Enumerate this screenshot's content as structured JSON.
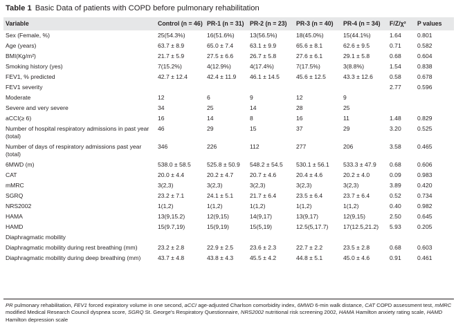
{
  "caption": {
    "label": "Table 1",
    "text": "Basic Data of patients with COPD before pulmonary rehabilitation"
  },
  "columns": [
    "Variable",
    "Control (n = 46)",
    "PR-1 (n = 31)",
    "PR-2 (n = 23)",
    "PR-3 (n = 40)",
    "PR-4 (n = 34)",
    "F/Z/χ²",
    "P values"
  ],
  "rows": [
    [
      "Sex (Female, %)",
      "25(54.3%)",
      "16(51.6%)",
      "13(56.5%)",
      "18(45.0%)",
      "15(44.1%)",
      "1.64",
      "0.801"
    ],
    [
      "Age (years)",
      "63.7 ± 8.9",
      "65.0 ± 7.4",
      "63.1 ± 9.9",
      "65.6 ± 8.1",
      "62.6 ± 9.5",
      "0.71",
      "0.582"
    ],
    [
      "BMI(Kg/m²)",
      "21.7 ± 5.9",
      "27.5 ± 6.6",
      "26.7 ± 5.8",
      "27.6 ± 6.1",
      "29.1 ± 5.8",
      "0.68",
      "0.604"
    ],
    [
      "Smoking history (yes)",
      "7(15.2%)",
      "4(12.9%)",
      "4(17.4%)",
      "7(17.5%)",
      "3(8.8%)",
      "1.54",
      "0.838"
    ],
    [
      "FEV1, % predicted",
      "42.7 ± 12.4",
      "42.4 ± 11.9",
      "46.1 ± 14.5",
      "45.6 ± 12.5",
      "43.3 ± 12.6",
      "0.58",
      "0.678"
    ],
    [
      "FEV1 severity",
      "",
      "",
      "",
      "",
      "",
      "2.77",
      "0.596"
    ],
    [
      "Moderate",
      "12",
      "6",
      "9",
      "12",
      "9",
      "",
      ""
    ],
    [
      "Severe and very severe",
      "34",
      "25",
      "14",
      "28",
      "25",
      "",
      ""
    ],
    [
      "aCCI(≥ 6)",
      "16",
      "14",
      "8",
      "16",
      "11",
      "1.48",
      "0.829"
    ],
    [
      "Number of hospital respiratory admissions in past year (total)",
      "46",
      "29",
      "15",
      "37",
      "29",
      "3.20",
      "0.525"
    ],
    [
      "Number of days of respiratory admissions past year (total)",
      "346",
      "226",
      "112",
      "277",
      "206",
      "3.58",
      "0.465"
    ],
    [
      "6MWD (m)",
      "538.0 ± 58.5",
      "525.8 ± 50.9",
      "548.2 ± 54.5",
      "530.1 ± 56.1",
      "533.3 ± 47.9",
      "0.68",
      "0.606"
    ],
    [
      "CAT",
      "20.0 ± 4.4",
      "20.2 ± 4.7",
      "20.7 ± 4.6",
      "20.4 ± 4.6",
      "20.2 ± 4.0",
      "0.09",
      "0.983"
    ],
    [
      "mMRC",
      "3(2,3)",
      "3(2,3)",
      "3(2,3)",
      "3(2,3)",
      "3(2,3)",
      "3.89",
      "0.420"
    ],
    [
      "SGRQ",
      "23.2 ± 7.1",
      "24.1 ± 5.1",
      "21.7 ± 6.4",
      "23.5 ± 6.4",
      "23.7 ± 6.4",
      "0.52",
      "0.734"
    ],
    [
      "NRS2002",
      "1(1,2)",
      "1(1,2)",
      "1(1,2)",
      "1(1,2)",
      "1(1,2)",
      "0.40",
      "0.982"
    ],
    [
      "HAMA",
      "13(9,15.2)",
      "12(9,15)",
      "14(9,17)",
      "13(9,17)",
      "12(9,15)",
      "2.50",
      "0.645"
    ],
    [
      "HAMD",
      "15(9.7,19)",
      "15(9,19)",
      "15(5,19)",
      "12.5(5,17.7)",
      "17(12.5,21.2)",
      "5.93",
      "0.205"
    ],
    [
      "Diaphragmatic mobility",
      "",
      "",
      "",
      "",
      "",
      "",
      ""
    ],
    [
      "Diaphragmatic mobility during rest breathing (mm)",
      "23.2 ± 2.8",
      "22.9 ± 2.5",
      "23.6 ± 2.3",
      "22.7 ± 2.2",
      "23.5 ± 2.8",
      "0.68",
      "0.603"
    ],
    [
      "Diaphragmatic mobility during deep breathing (mm)",
      "43.7 ± 4.8",
      "43.8 ± 4.3",
      "45.5 ± 4.2",
      "44.8 ± 5.1",
      "45.0 ± 4.6",
      "0.91",
      "0.461"
    ]
  ],
  "footnote": [
    {
      "abbr": "PR",
      "text": " pulmonary rehabilitation, "
    },
    {
      "abbr": "FEV1",
      "text": " forced expiratory volume in one second, "
    },
    {
      "abbr": "aCCI",
      "text": " age-adjusted Charlson comorbidity index, "
    },
    {
      "abbr": "6MWD",
      "text": " 6-min walk distance, "
    },
    {
      "abbr": "CAT",
      "text": " COPD assessment test, "
    },
    {
      "abbr": "mMRC",
      "text": " modified Medical Research Council dyspnea score, "
    },
    {
      "abbr": "SGRQ",
      "text": " St. George's Respiratory Questionnaire, "
    },
    {
      "abbr": "NRS2002",
      "text": " nutritional risk screening 2002, "
    },
    {
      "abbr": "HAMA",
      "text": " Hamilton anxiety rating scale, "
    },
    {
      "abbr": "HAMD",
      "text": " Hamilton depression scale"
    }
  ]
}
